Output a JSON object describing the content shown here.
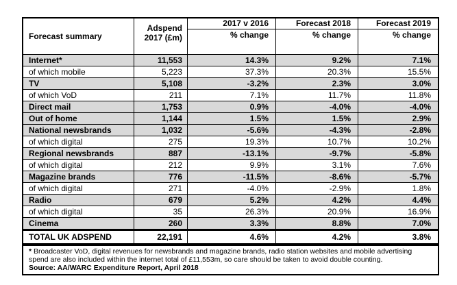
{
  "table": {
    "header": {
      "col0": "Forecast summary",
      "col1_line1": "Adspend",
      "col1_line2": "2017 (£m)",
      "col2_year": "2017 v 2016",
      "col3_year": "Forecast 2018",
      "col4_year": "Forecast 2019",
      "col2_sub": "% change",
      "col3_sub": "% change",
      "col4_sub": "% change"
    },
    "rows": [
      {
        "label": "Internet*",
        "adspend": "11,553",
        "change_2017_v_2016": "14.3%",
        "forecast_2018": "9.2%",
        "forecast_2019": "7.1%"
      },
      {
        "label": "of which mobile",
        "adspend": "5,223",
        "change_2017_v_2016": "37.3%",
        "forecast_2018": "20.3%",
        "forecast_2019": "15.5%"
      },
      {
        "label": "TV",
        "adspend": "5,108",
        "change_2017_v_2016": "-3.2%",
        "forecast_2018": "2.3%",
        "forecast_2019": "3.0%"
      },
      {
        "label": "of which VoD",
        "adspend": "211",
        "change_2017_v_2016": "7.1%",
        "forecast_2018": "11.7%",
        "forecast_2019": "11.8%"
      },
      {
        "label": "Direct mail",
        "adspend": "1,753",
        "change_2017_v_2016": "0.9%",
        "forecast_2018": "-4.0%",
        "forecast_2019": "-4.0%"
      },
      {
        "label": "Out of home",
        "adspend": "1,144",
        "change_2017_v_2016": "1.5%",
        "forecast_2018": "1.5%",
        "forecast_2019": "2.9%"
      },
      {
        "label": "National newsbrands",
        "adspend": "1,032",
        "change_2017_v_2016": "-5.6%",
        "forecast_2018": "-4.3%",
        "forecast_2019": "-2.8%"
      },
      {
        "label": "of which digital",
        "adspend": "275",
        "change_2017_v_2016": "19.3%",
        "forecast_2018": "10.7%",
        "forecast_2019": "10.2%"
      },
      {
        "label": "Regional newsbrands",
        "adspend": "887",
        "change_2017_v_2016": "-13.1%",
        "forecast_2018": "-9.7%",
        "forecast_2019": "-5.8%"
      },
      {
        "label": "of which digital",
        "adspend": "212",
        "change_2017_v_2016": "9.9%",
        "forecast_2018": "3.1%",
        "forecast_2019": "7.6%"
      },
      {
        "label": "Magazine brands",
        "adspend": "776",
        "change_2017_v_2016": "-11.5%",
        "forecast_2018": "-8.6%",
        "forecast_2019": "-5.7%"
      },
      {
        "label": "of which digital",
        "adspend": "271",
        "change_2017_v_2016": "-4.0%",
        "forecast_2018": "-2.9%",
        "forecast_2019": "1.8%"
      },
      {
        "label": "Radio",
        "adspend": "679",
        "change_2017_v_2016": "5.2%",
        "forecast_2018": "4.2%",
        "forecast_2019": "4.4%"
      },
      {
        "label": "of which digital",
        "adspend": "35",
        "change_2017_v_2016": "26.3%",
        "forecast_2018": "20.9%",
        "forecast_2019": "16.9%"
      },
      {
        "label": "Cinema",
        "adspend": "260",
        "change_2017_v_2016": "3.3%",
        "forecast_2018": "8.8%",
        "forecast_2019": "7.0%"
      }
    ],
    "total": {
      "label": "TOTAL UK ADSPEND",
      "adspend": "22,191",
      "change_2017_v_2016": "4.6%",
      "forecast_2018": "4.2%",
      "forecast_2019": "3.8%"
    }
  },
  "footnote": {
    "asterisk": "*",
    "text": " Broadcaster VoD, digital revenues for newsbrands and magazine brands, radio station websites and mobile advertising spend are also included within the internet total of £11,553m, so care should be taken to avoid double counting.",
    "source": "Source: AA/WARC Expenditure Report, April 2018"
  },
  "colors": {
    "row_shade": "#d9d9d9",
    "border": "#000000",
    "background": "#ffffff"
  }
}
